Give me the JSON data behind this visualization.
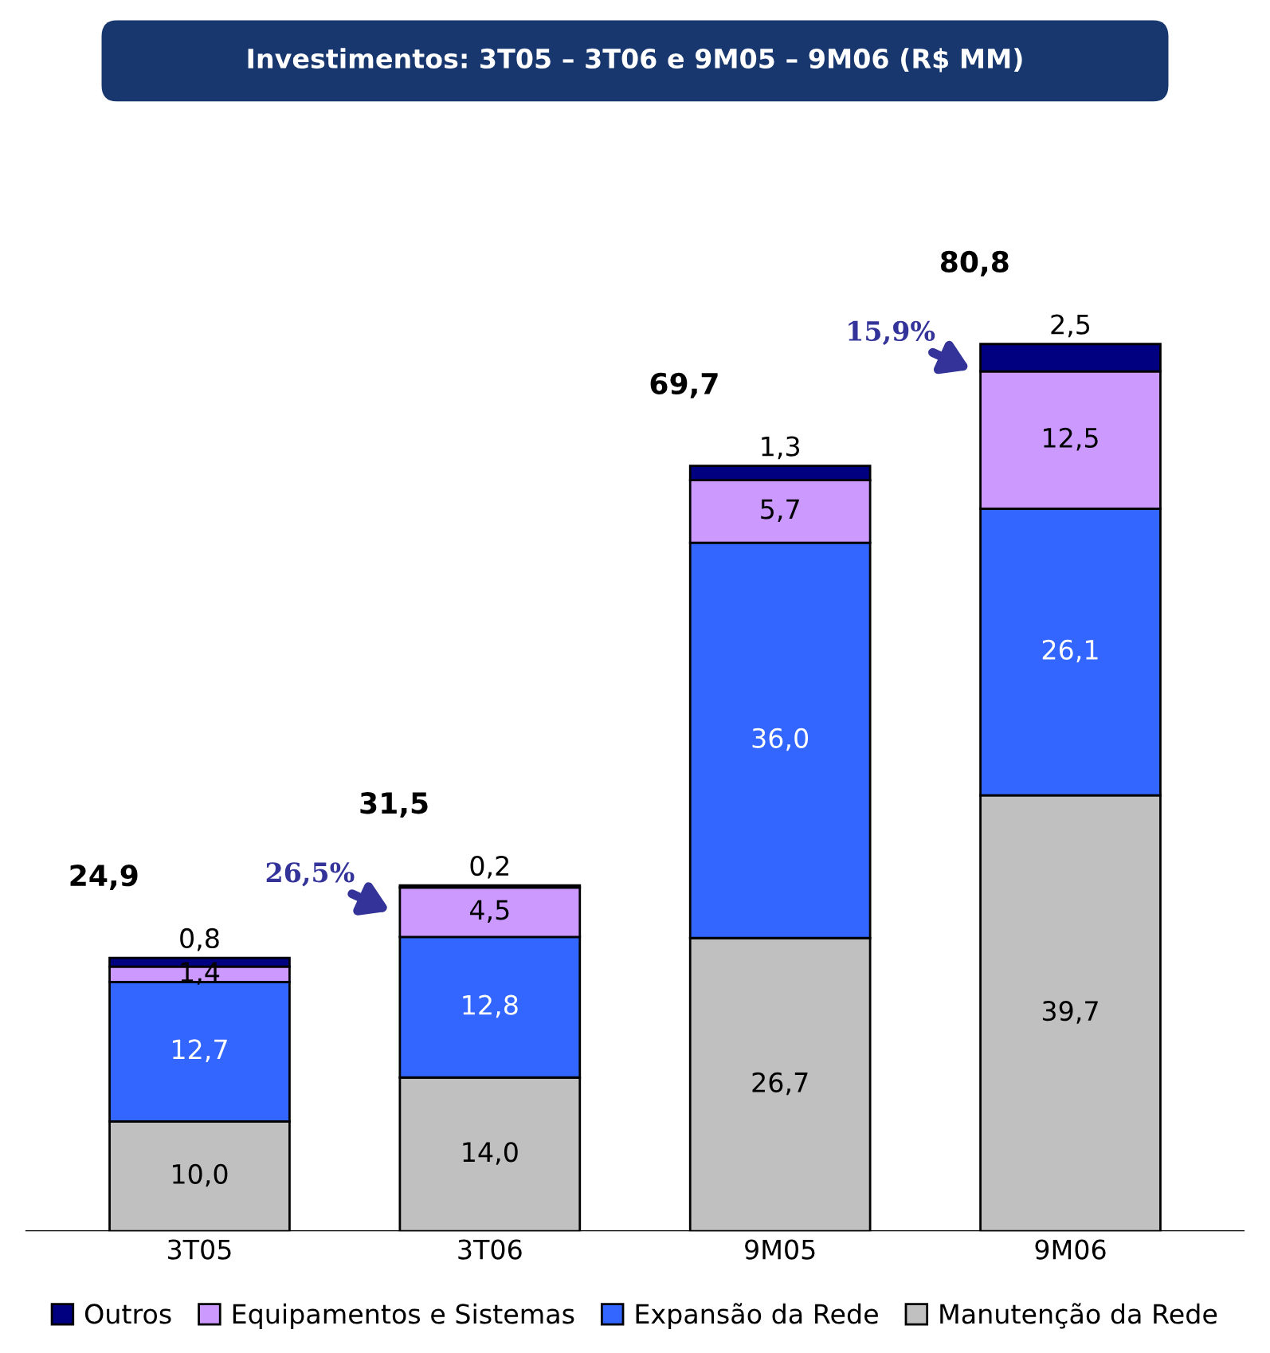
{
  "chart_data": {
    "type": "bar",
    "title": "Investimentos: 3T05 – 3T06 e 9M05 – 9M06 (R$ MM)",
    "categories": [
      "3T05",
      "3T06",
      "9M05",
      "9M06"
    ],
    "stacked": true,
    "legend": "bottom",
    "grid": false,
    "series": [
      {
        "name": "Manutenção da Rede",
        "color": "#c0c0c0",
        "values": [
          10.0,
          14.0,
          26.7,
          39.7
        ],
        "value_labels": [
          "10,0",
          "14,0",
          "26,7",
          "39,7"
        ]
      },
      {
        "name": "Expansão da Rede",
        "color": "#3366ff",
        "values": [
          12.7,
          12.8,
          36.0,
          26.1
        ],
        "value_labels": [
          "12,7",
          "12,8",
          "36,0",
          "26,1"
        ]
      },
      {
        "name": "Equipamentos e Sistemas",
        "color": "#cc99ff",
        "values": [
          1.4,
          4.5,
          5.7,
          12.5
        ],
        "value_labels": [
          "1,4",
          "4,5",
          "5,7",
          "12,5"
        ]
      },
      {
        "name": "Outros",
        "color": "#000080",
        "values": [
          0.8,
          0.2,
          1.3,
          2.5
        ],
        "value_labels": [
          "0,8",
          "0,2",
          "1,3",
          "2,5"
        ]
      }
    ],
    "totals": [
      "24,9",
      "31,5",
      "69,7",
      "80,8"
    ],
    "annotations": [
      "26,5%",
      "15,9%"
    ]
  }
}
